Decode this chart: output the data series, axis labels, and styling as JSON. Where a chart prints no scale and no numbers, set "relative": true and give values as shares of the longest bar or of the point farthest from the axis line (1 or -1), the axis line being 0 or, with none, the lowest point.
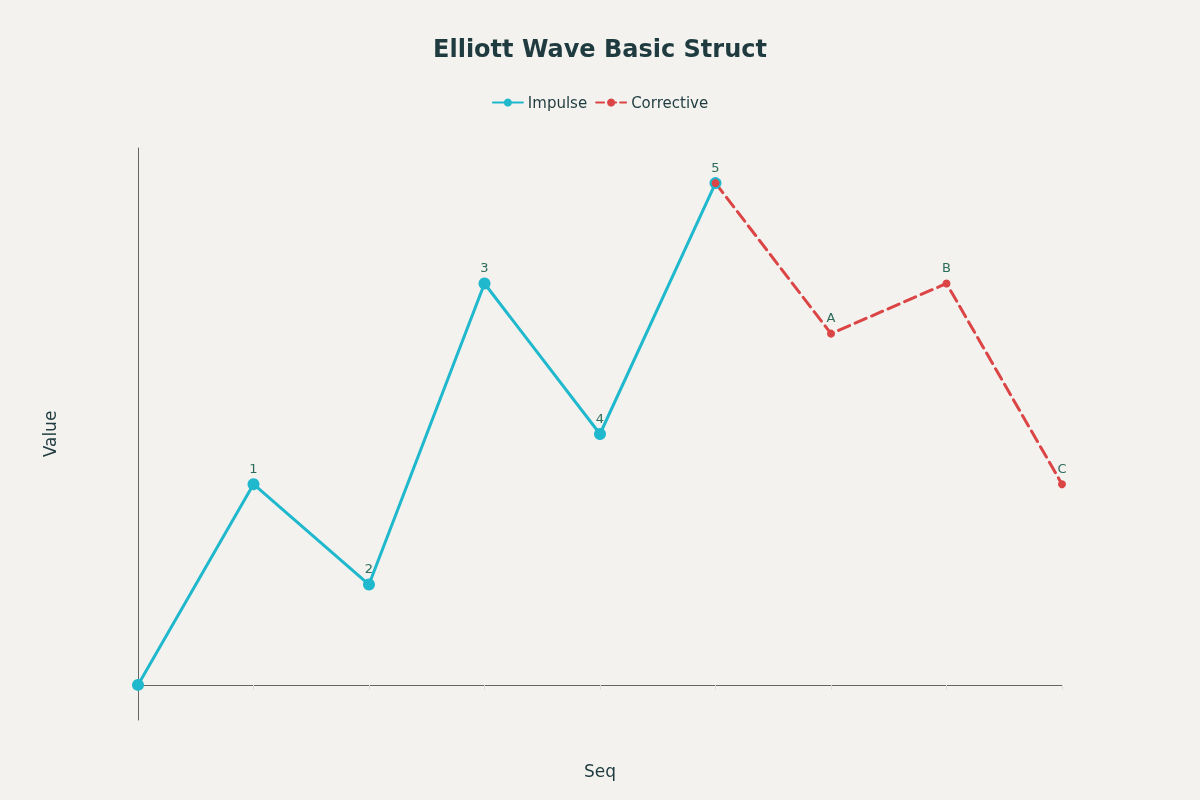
{
  "chart_data": {
    "type": "line",
    "title": "Elliott Wave Basic Struct",
    "xlabel": "Seq",
    "ylabel": "Value",
    "relative": true,
    "categories": [
      null,
      null,
      null,
      null,
      null,
      null,
      null,
      null,
      null
    ],
    "series": [
      {
        "name": "Impulse",
        "color": "#1fb8cd",
        "line_style": "solid",
        "values": [
          0,
          0.4,
          0.2,
          0.8,
          0.5,
          1,
          null,
          null,
          null
        ]
      },
      {
        "name": "Corrective",
        "color": "#db4545",
        "line_style": "dashed",
        "values": [
          null,
          null,
          null,
          null,
          null,
          1,
          0.7,
          0.8,
          0.4
        ]
      }
    ],
    "annotations": [
      {
        "text": "1",
        "y": 0.4
      },
      {
        "text": "2",
        "y": 0.2
      },
      {
        "text": "3",
        "y": 0.8
      },
      {
        "text": "4",
        "y": 0.5
      },
      {
        "text": "5",
        "y": 1
      },
      {
        "text": "A",
        "y": 0.7
      },
      {
        "text": "B",
        "y": 0.8
      },
      {
        "text": "C",
        "y": 0.4
      }
    ],
    "marker": "circle",
    "legend": "top",
    "grid": false
  }
}
